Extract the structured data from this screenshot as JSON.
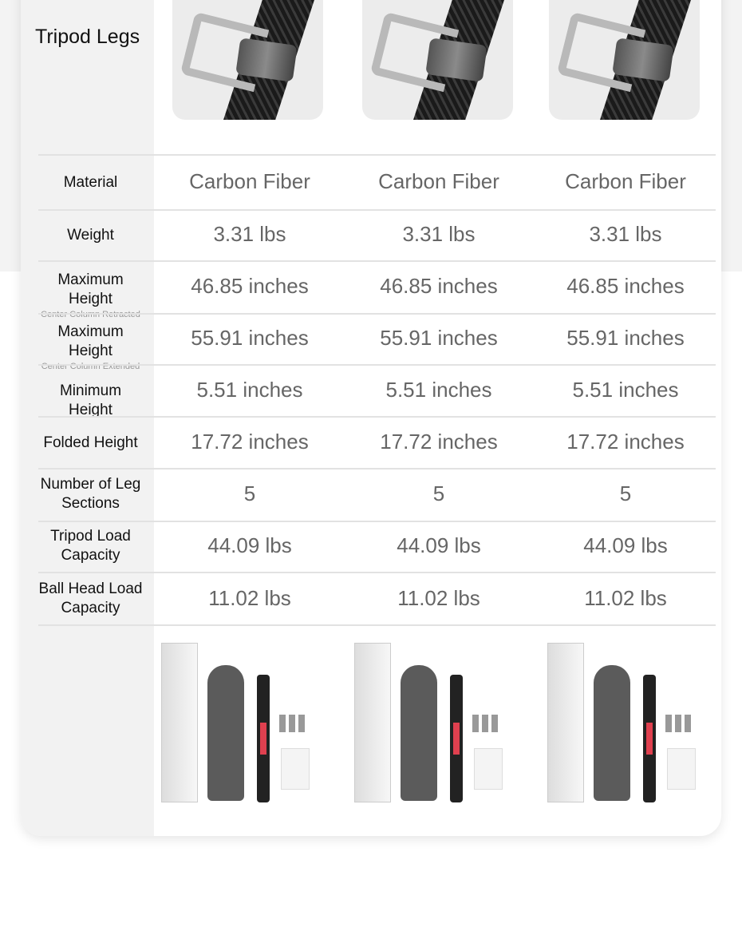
{
  "section_title": "Tripod Legs",
  "products": [
    {
      "material": "Carbon Fiber",
      "weight": "3.31 lbs",
      "max_height_retracted": "46.85 inches",
      "max_height_extended": "55.91 inches",
      "min_height": "5.51 inches",
      "folded_height": "17.72 inches",
      "leg_sections": "5",
      "tripod_load": "44.09 lbs",
      "ball_head_load": "11.02 lbs"
    },
    {
      "material": "Carbon Fiber",
      "weight": "3.31 lbs",
      "max_height_retracted": "46.85 inches",
      "max_height_extended": "55.91 inches",
      "min_height": "5.51 inches",
      "folded_height": "17.72 inches",
      "leg_sections": "5",
      "tripod_load": "44.09 lbs",
      "ball_head_load": "11.02 lbs"
    },
    {
      "material": "Carbon Fiber",
      "weight": "3.31 lbs",
      "max_height_retracted": "46.85 inches",
      "max_height_extended": "55.91 inches",
      "min_height": "5.51 inches",
      "folded_height": "17.72 inches",
      "leg_sections": "5",
      "tripod_load": "44.09 lbs",
      "ball_head_load": "11.02 lbs"
    }
  ],
  "rows": [
    {
      "key": "material",
      "label": "Material"
    },
    {
      "key": "weight",
      "label": "Weight"
    },
    {
      "key": "max_height_retracted",
      "label": "Maximum Height",
      "sub": "Center Column Retracted"
    },
    {
      "key": "max_height_extended",
      "label": "Maximum Height",
      "sub": "Center Column Extended"
    },
    {
      "key": "min_height",
      "label": "Minimum Height"
    },
    {
      "key": "folded_height",
      "label": "Folded Height"
    },
    {
      "key": "leg_sections",
      "label": "Number of Leg Sections"
    },
    {
      "key": "tripod_load",
      "label": "Tripod Load Capacity"
    },
    {
      "key": "ball_head_load",
      "label": "Ball Head Load Capacity"
    }
  ]
}
